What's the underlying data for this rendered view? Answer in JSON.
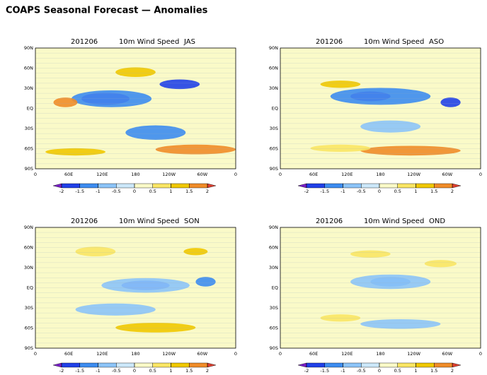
{
  "title": "COAPS Seasonal Forecast — Anomalies",
  "panels": [
    {
      "date": "201206",
      "variable": "10m Wind Speed",
      "season": "JAS"
    },
    {
      "date": "201206",
      "variable": "10m Wind Speed",
      "season": "ASO"
    },
    {
      "date": "201206",
      "variable": "10m Wind Speed",
      "season": "SON"
    },
    {
      "date": "201206",
      "variable": "10m Wind Speed",
      "season": "OND"
    }
  ],
  "lat_labels": [
    "90N",
    "60N",
    "30N",
    "EQ",
    "30S",
    "60S",
    "90S"
  ],
  "lon_labels": [
    "0",
    "60E",
    "120E",
    "180",
    "120W",
    "60W",
    "0"
  ],
  "colorbar": {
    "ticks": [
      -2,
      -1.5,
      -1,
      -0.5,
      0,
      0.5,
      1,
      1.5,
      2
    ],
    "colors": [
      "#7a1fc8",
      "#2040e8",
      "#3c8cf0",
      "#8cc4f8",
      "#cce8fa",
      "#fafac8",
      "#fae664",
      "#f0c800",
      "#f08c28",
      "#e04030"
    ]
  }
}
